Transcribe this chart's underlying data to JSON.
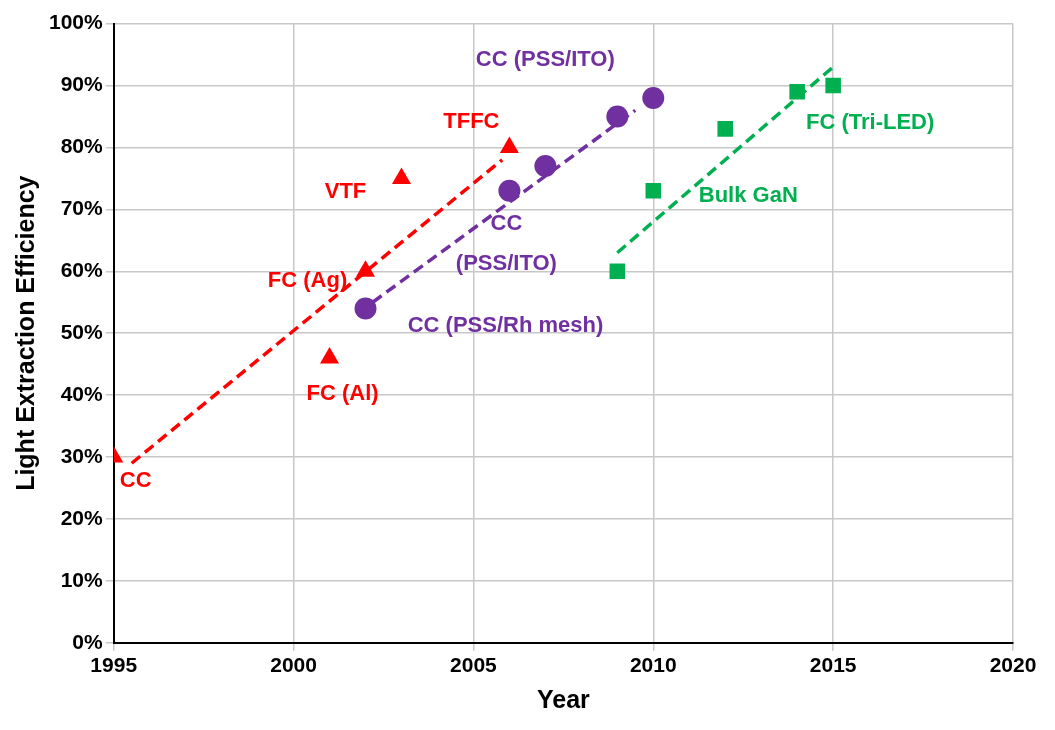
{
  "chart_data": {
    "type": "scatter",
    "xlabel": "Year",
    "ylabel": "Light Extraction Efficiency",
    "xlim": [
      1995,
      2020
    ],
    "xticks": [
      1995,
      2000,
      2005,
      2010,
      2015,
      2020
    ],
    "ylim": [
      0,
      100
    ],
    "yticks": [
      {
        "value": 0,
        "label": "0%"
      },
      {
        "value": 10,
        "label": "10%"
      },
      {
        "value": 20,
        "label": "20%"
      },
      {
        "value": 30,
        "label": "30%"
      },
      {
        "value": 40,
        "label": "40%"
      },
      {
        "value": 50,
        "label": "50%"
      },
      {
        "value": 60,
        "label": "60%"
      },
      {
        "value": 70,
        "label": "70%"
      },
      {
        "value": 80,
        "label": "80%"
      },
      {
        "value": 90,
        "label": "90%"
      },
      {
        "value": 100,
        "label": "100%"
      }
    ],
    "grid": true,
    "series": [
      {
        "type": "scatter",
        "marker": "triangle",
        "color": "#ff0000",
        "x": [
          1995,
          2001,
          2002,
          2003,
          2006
        ],
        "values": [
          30,
          46,
          60,
          75,
          80
        ]
      },
      {
        "type": "scatter",
        "marker": "circle",
        "color": "#7030a0",
        "x": [
          2002,
          2006,
          2007,
          2009,
          2010
        ],
        "values": [
          54,
          73,
          77,
          85,
          88
        ]
      },
      {
        "type": "scatter",
        "marker": "square",
        "color": "#00b050",
        "x": [
          2009,
          2010,
          2012,
          2014,
          2015
        ],
        "values": [
          60,
          73,
          83,
          89,
          90
        ]
      },
      {
        "type": "line",
        "marker": "none",
        "line_style": "dashed",
        "color": "#ff0000",
        "x": [
          1995.5,
          2005.8
        ],
        "values": [
          29,
          78
        ]
      },
      {
        "type": "line",
        "marker": "none",
        "line_style": "dashed",
        "color": "#7030a0",
        "x": [
          2002.2,
          2009.5
        ],
        "values": [
          55,
          86
        ]
      },
      {
        "type": "line",
        "marker": "none",
        "line_style": "dashed",
        "color": "#00b050",
        "x": [
          2009,
          2015
        ],
        "values": [
          63,
          93
        ]
      }
    ],
    "annotations": [
      {
        "text": "CC",
        "x": 1995,
        "y": 30
      },
      {
        "text": "FC (Al)",
        "x": 2001,
        "y": 46
      },
      {
        "text": "FC (Ag)",
        "x": 2002,
        "y": 60
      },
      {
        "text": "VTF",
        "x": 2003,
        "y": 75
      },
      {
        "text": "TFFC",
        "x": 2006,
        "y": 80
      },
      {
        "text": "CC (PSS/ITO)",
        "x": 2010,
        "y": 88
      },
      {
        "text": "CC\n(PSS/ITO)",
        "x": 2006,
        "y": 73
      },
      {
        "text": "CC (PSS/Rh mesh)",
        "x": 2002,
        "y": 54
      },
      {
        "text": "Bulk GaN",
        "x": 2010,
        "y": 73
      },
      {
        "text": "FC (Tri-LED)",
        "x": 2015,
        "y": 90
      }
    ]
  }
}
